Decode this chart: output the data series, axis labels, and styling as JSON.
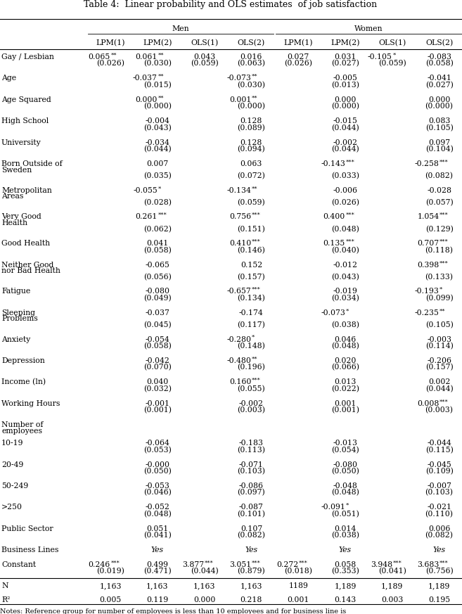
{
  "title": "Table 4:  Linear probability and OLS estimates  of job satisfaction",
  "notes": "Notes: Reference group for number of employees is less than 10 employees and for business line is",
  "col_headers": [
    "LPM(1)",
    "LPM(2)",
    "OLS(1)",
    "OLS(2)",
    "LPM(1)",
    "LPM(2)",
    "OLS(1)",
    "OLS(2)"
  ],
  "rows": [
    {
      "label": "Gay / Lesbian",
      "values": [
        "0.065**",
        "0.061**",
        "0.043",
        "0.016",
        "0.027",
        "0.031",
        "-0.105*",
        "-0.083"
      ],
      "se": [
        "(0.026)",
        "(0.030)",
        "(0.059)",
        "(0.063)",
        "(0.026)",
        "(0.027)",
        "(0.059)",
        "(0.058)"
      ],
      "multiline_label": false
    },
    {
      "label": "Age",
      "values": [
        "",
        "-0.037**",
        "",
        "-0.073**",
        "",
        "-0.005",
        "",
        "-0.041"
      ],
      "se": [
        "",
        "(0.015)",
        "",
        "(0.030)",
        "",
        "(0.013)",
        "",
        "(0.027)"
      ],
      "multiline_label": false
    },
    {
      "label": "Age Squared",
      "values": [
        "",
        "0.000**",
        "",
        "0.001**",
        "",
        "0.000",
        "",
        "0.000"
      ],
      "se": [
        "",
        "(0.000)",
        "",
        "(0.000)",
        "",
        "(0.000)",
        "",
        "(0.000)"
      ],
      "multiline_label": false
    },
    {
      "label": "High School",
      "values": [
        "",
        "-0.004",
        "",
        "0.128",
        "",
        "-0.015",
        "",
        "0.083"
      ],
      "se": [
        "",
        "(0.043)",
        "",
        "(0.089)",
        "",
        "(0.044)",
        "",
        "(0.105)"
      ],
      "multiline_label": false
    },
    {
      "label": "University",
      "values": [
        "",
        "-0.034",
        "",
        "0.128",
        "",
        "-0.002",
        "",
        "0.097"
      ],
      "se": [
        "",
        "(0.044)",
        "",
        "(0.094)",
        "",
        "(0.044)",
        "",
        "(0.104)"
      ],
      "multiline_label": false
    },
    {
      "label": "Born Outside of",
      "label2": "Sweden",
      "values": [
        "",
        "0.007",
        "",
        "0.063",
        "",
        "-0.143***",
        "",
        "-0.258***"
      ],
      "se": [
        "",
        "(0.035)",
        "",
        "(0.072)",
        "",
        "(0.033)",
        "",
        "(0.082)"
      ],
      "multiline_label": true
    },
    {
      "label": "Metropolitan",
      "label2": "Areas",
      "values": [
        "",
        "-0.055*",
        "",
        "-0.134**",
        "",
        "-0.006",
        "",
        "-0.028"
      ],
      "se": [
        "",
        "(0.028)",
        "",
        "(0.059)",
        "",
        "(0.026)",
        "",
        "(0.057)"
      ],
      "multiline_label": true
    },
    {
      "label": "Very Good",
      "label2": "Health",
      "values": [
        "",
        "0.261***",
        "",
        "0.756***",
        "",
        "0.400***",
        "",
        "1.054***"
      ],
      "se": [
        "",
        "(0.062)",
        "",
        "(0.151)",
        "",
        "(0.048)",
        "",
        "(0.129)"
      ],
      "multiline_label": true
    },
    {
      "label": "Good Health",
      "label2": "",
      "values": [
        "",
        "0.041",
        "",
        "0.410***",
        "",
        "0.135***",
        "",
        "0.707***"
      ],
      "se": [
        "",
        "(0.058)",
        "",
        "(0.146)",
        "",
        "(0.040)",
        "",
        "(0.118)"
      ],
      "multiline_label": false
    },
    {
      "label": "Neither Good",
      "label2": "nor Bad Health",
      "values": [
        "",
        "-0.065",
        "",
        "0.152",
        "",
        "-0.012",
        "",
        "0.398***"
      ],
      "se": [
        "",
        "(0.056)",
        "",
        "(0.157)",
        "",
        "(0.043)",
        "",
        "(0.133)"
      ],
      "multiline_label": true
    },
    {
      "label": "Fatigue",
      "label2": "",
      "values": [
        "",
        "-0.080",
        "",
        "-0.657***",
        "",
        "-0.019",
        "",
        "-0.193*"
      ],
      "se": [
        "",
        "(0.049)",
        "",
        "(0.134)",
        "",
        "(0.034)",
        "",
        "(0.099)"
      ],
      "multiline_label": false
    },
    {
      "label": "Sleeping",
      "label2": "Problems",
      "values": [
        "",
        "-0.037",
        "",
        "-0.174",
        "",
        "-0.073*",
        "",
        "-0.235**"
      ],
      "se": [
        "",
        "(0.045)",
        "",
        "(0.117)",
        "",
        "(0.038)",
        "",
        "(0.105)"
      ],
      "multiline_label": true
    },
    {
      "label": "Anxiety",
      "label2": "",
      "values": [
        "",
        "-0.054",
        "",
        "-0.280*",
        "",
        "0.046",
        "",
        "-0.003"
      ],
      "se": [
        "",
        "(0.058)",
        "",
        "(0.148)",
        "",
        "(0.048)",
        "",
        "(0.114)"
      ],
      "multiline_label": false
    },
    {
      "label": "Depression",
      "label2": "",
      "values": [
        "",
        "-0.042",
        "",
        "-0.480**",
        "",
        "0.020",
        "",
        "-0.206"
      ],
      "se": [
        "",
        "(0.070)",
        "",
        "(0.196)",
        "",
        "(0.066)",
        "",
        "(0.157)"
      ],
      "multiline_label": false
    },
    {
      "label": "Income (ln)",
      "label2": "",
      "values": [
        "",
        "0.040",
        "",
        "0.160***",
        "",
        "0.013",
        "",
        "0.002"
      ],
      "se": [
        "",
        "(0.032)",
        "",
        "(0.055)",
        "",
        "(0.022)",
        "",
        "(0.044)"
      ],
      "multiline_label": false
    },
    {
      "label": "Working Hours",
      "label2": "",
      "values": [
        "",
        "-0.001",
        "",
        "-0.002",
        "",
        "0.001",
        "",
        "0.008***"
      ],
      "se": [
        "",
        "(0.001)",
        "",
        "(0.003)",
        "",
        "(0.001)",
        "",
        "(0.003)"
      ],
      "multiline_label": false
    },
    {
      "label": "Number of",
      "label2": "employees",
      "values": [
        "",
        "",
        "",
        "",
        "",
        "",
        "",
        ""
      ],
      "se": [
        "",
        "",
        "",
        "",
        "",
        "",
        "",
        ""
      ],
      "multiline_label": true,
      "label_only": true
    },
    {
      "label": "10-19",
      "label2": "",
      "values": [
        "",
        "-0.064",
        "",
        "-0.183",
        "",
        "-0.013",
        "",
        "-0.044"
      ],
      "se": [
        "",
        "(0.053)",
        "",
        "(0.113)",
        "",
        "(0.054)",
        "",
        "(0.115)"
      ],
      "multiline_label": false
    },
    {
      "label": "20-49",
      "label2": "",
      "values": [
        "",
        "-0.000",
        "",
        "-0.071",
        "",
        "-0.080",
        "",
        "-0.045"
      ],
      "se": [
        "",
        "(0.050)",
        "",
        "(0.103)",
        "",
        "(0.050)",
        "",
        "(0.109)"
      ],
      "multiline_label": false
    },
    {
      "label": "50-249",
      "label2": "",
      "values": [
        "",
        "-0.053",
        "",
        "-0.086",
        "",
        "-0.048",
        "",
        "-0.007"
      ],
      "se": [
        "",
        "(0.046)",
        "",
        "(0.097)",
        "",
        "(0.048)",
        "",
        "(0.103)"
      ],
      "multiline_label": false
    },
    {
      "label": ">250",
      "label2": "",
      "values": [
        "",
        "-0.052",
        "",
        "-0.087",
        "",
        "-0.091*",
        "",
        "-0.021"
      ],
      "se": [
        "",
        "(0.048)",
        "",
        "(0.101)",
        "",
        "(0.051)",
        "",
        "(0.110)"
      ],
      "multiline_label": false
    },
    {
      "label": "Public Sector",
      "label2": "",
      "values": [
        "",
        "0.051",
        "",
        "0.107",
        "",
        "0.014",
        "",
        "0.006"
      ],
      "se": [
        "",
        "(0.041)",
        "",
        "(0.082)",
        "",
        "(0.038)",
        "",
        "(0.082)"
      ],
      "multiline_label": false
    },
    {
      "label": "Business Lines",
      "label2": "",
      "values": [
        "",
        "Yes",
        "",
        "Yes",
        "",
        "Yes",
        "",
        "Yes"
      ],
      "se": [
        "",
        "",
        "",
        "",
        "",
        "",
        "",
        ""
      ],
      "multiline_label": false,
      "italic_vals": true
    },
    {
      "label": "Constant",
      "label2": "",
      "values": [
        "0.246***",
        "0.499",
        "3.877***",
        "3.051***",
        "0.272***",
        "0.058",
        "3.948***",
        "3.683***"
      ],
      "se": [
        "(0.019)",
        "(0.471)",
        "(0.044)",
        "(0.879)",
        "(0.018)",
        "(0.353)",
        "(0.041)",
        "(0.756)"
      ],
      "multiline_label": false
    },
    {
      "label": "N",
      "label2": "",
      "values": [
        "1,163",
        "1,163",
        "1,163",
        "1,163",
        "1189",
        "1,189",
        "1,189",
        "1,189"
      ],
      "se": [
        "",
        "",
        "",
        "",
        "",
        "",
        "",
        ""
      ],
      "multiline_label": false,
      "is_stat": true,
      "has_top_line": true
    },
    {
      "label": "R²",
      "label2": "",
      "values": [
        "0.005",
        "0.119",
        "0.000",
        "0.218",
        "0.001",
        "0.143",
        "0.003",
        "0.195"
      ],
      "se": [
        "",
        "",
        "",
        "",
        "",
        "",
        "",
        ""
      ],
      "multiline_label": false,
      "is_stat": true
    }
  ]
}
